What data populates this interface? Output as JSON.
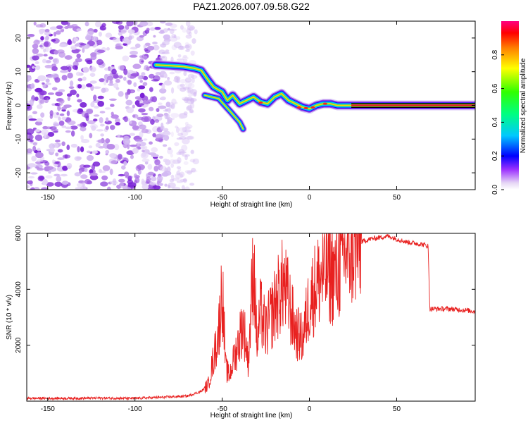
{
  "title": "PAZ1.2026.007.09.58.G22",
  "colors": {
    "snr_line": "#e8201f",
    "ridge": "#e4202a",
    "frame": "#000000",
    "noise": "#8a2be2"
  },
  "chart_data": [
    {
      "type": "heatmap",
      "title": "PAZ1.2026.007.09.58.G22",
      "xlabel": "Height of straight line (km)",
      "ylabel": "Frequency (Hz)",
      "xlim": [
        -162,
        95
      ],
      "ylim": [
        -25,
        25
      ],
      "x_ticks": [
        -150,
        -100,
        -50,
        0,
        50
      ],
      "x_tick_labels": [
        "-150",
        "-100",
        "-50",
        "0",
        "50"
      ],
      "y_ticks": [
        -20,
        -10,
        0,
        10,
        20
      ],
      "y_tick_labels": [
        "-20",
        "-10",
        "0",
        "10",
        "20"
      ],
      "colorbar": {
        "label": "Normalized spectral amplitude",
        "range": [
          0,
          1
        ],
        "ticks": [
          0.0,
          0.2,
          0.4,
          0.6,
          0.8
        ],
        "tick_labels": [
          "0.0",
          "0.2",
          "0.4",
          "0.6",
          "0.8"
        ],
        "colormap": "rainbow (magenta to red)"
      },
      "noise_region": {
        "x_range": [
          -162,
          -65
        ],
        "amplitude": "low (0.0-0.2)"
      },
      "ridge": [
        {
          "x": -88,
          "f": 12.0
        },
        {
          "x": -80,
          "f": 11.8
        },
        {
          "x": -72,
          "f": 11.5
        },
        {
          "x": -66,
          "f": 11.0
        },
        {
          "x": -62,
          "f": 10.4
        },
        {
          "x": -58,
          "f": 7.5
        },
        {
          "x": -55,
          "f": 5.5
        },
        {
          "x": -50,
          "f": 4.0
        },
        {
          "x": -47,
          "f": 1.5
        },
        {
          "x": -44,
          "f": 3.0
        },
        {
          "x": -40,
          "f": 0.5
        },
        {
          "x": -36,
          "f": 1.5
        },
        {
          "x": -32,
          "f": 2.5
        },
        {
          "x": -28,
          "f": 1.0
        },
        {
          "x": -24,
          "f": 0.5
        },
        {
          "x": -20,
          "f": 2.5
        },
        {
          "x": -16,
          "f": 3.5
        },
        {
          "x": -12,
          "f": 1.5
        },
        {
          "x": -8,
          "f": 0.5
        },
        {
          "x": -4,
          "f": -0.5
        },
        {
          "x": 0,
          "f": -1.0
        },
        {
          "x": 4,
          "f": 0.0
        },
        {
          "x": 8,
          "f": 0.5
        },
        {
          "x": 12,
          "f": 0.5
        },
        {
          "x": 16,
          "f": 0.0
        },
        {
          "x": 20,
          "f": 0.0
        },
        {
          "x": 25,
          "f": 0.0
        },
        {
          "x": 95,
          "f": 0.0
        }
      ],
      "side_branch": [
        {
          "x": -60,
          "f": 3.0
        },
        {
          "x": -52,
          "f": 2.0
        },
        {
          "x": -45,
          "f": -2.0
        },
        {
          "x": -40,
          "f": -5.0
        },
        {
          "x": -38,
          "f": -7.0
        }
      ]
    },
    {
      "type": "line",
      "xlabel": "Height of straight line (km)",
      "ylabel": "SNR (10 * v/v)",
      "xlim": [
        -162,
        95
      ],
      "ylim": [
        0,
        6000
      ],
      "x_ticks": [
        -150,
        -100,
        -50,
        0,
        50
      ],
      "x_tick_labels": [
        "-150",
        "-100",
        "-50",
        "0",
        "50"
      ],
      "y_ticks": [
        2000,
        4000,
        6000
      ],
      "y_tick_labels": [
        "2000",
        "4000",
        "6000"
      ],
      "series": [
        {
          "name": "SNR",
          "x": [
            -162,
            -140,
            -120,
            -100,
            -80,
            -70,
            -62,
            -58,
            -55,
            -52,
            -50,
            -48,
            -46,
            -42,
            -38,
            -35,
            -32,
            -30,
            -28,
            -25,
            -20,
            -15,
            -12,
            -8,
            -4,
            0,
            5,
            10,
            15,
            20,
            25,
            30,
            35,
            40,
            45,
            50,
            55,
            60,
            65,
            68,
            69,
            70,
            80,
            90,
            95
          ],
          "y": [
            100,
            100,
            110,
            100,
            150,
            180,
            350,
            600,
            1500,
            2500,
            4150,
            1200,
            900,
            1800,
            2800,
            1400,
            5100,
            2000,
            3200,
            2500,
            3400,
            4200,
            3600,
            2500,
            2200,
            3600,
            4300,
            4700,
            4500,
            5300,
            5550,
            5700,
            5800,
            5850,
            5900,
            5800,
            5700,
            5650,
            5600,
            5550,
            3300,
            3300,
            3300,
            3250,
            3200
          ]
        }
      ]
    }
  ]
}
